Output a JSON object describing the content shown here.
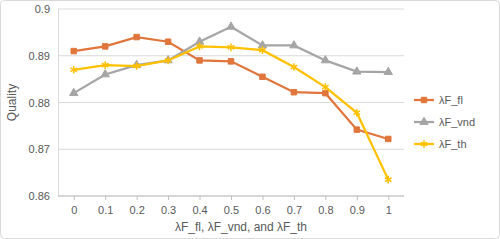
{
  "chart_data": {
    "type": "line",
    "x_label": "λF_fl, λF_vnd, and λF_th",
    "y_label": "Quality",
    "categories": [
      "0",
      "0.1",
      "0.2",
      "0.3",
      "0.4",
      "0.5",
      "0.6",
      "0.7",
      "0.8",
      "0.9",
      "1"
    ],
    "series": [
      {
        "name": "λF_fl",
        "color": "#e0763c",
        "marker": "square",
        "values": [
          0.891,
          0.892,
          0.894,
          0.893,
          0.889,
          0.8888,
          0.8855,
          0.8822,
          0.882,
          0.8742,
          0.8722
        ]
      },
      {
        "name": "λF_vnd",
        "color": "#a5a5a5",
        "marker": "triangle",
        "values": [
          0.882,
          0.886,
          0.888,
          0.889,
          0.893,
          0.8962,
          0.8922,
          0.8922,
          0.889,
          0.8866,
          0.8865
        ]
      },
      {
        "name": "λF_th",
        "color": "#ffc000",
        "marker": "asterisk",
        "values": [
          0.887,
          0.888,
          0.8878,
          0.889,
          0.892,
          0.8918,
          0.8912,
          0.8876,
          0.8833,
          0.8778,
          0.8635
        ]
      }
    ],
    "ylim": [
      0.86,
      0.9
    ],
    "yticks": [
      0.86,
      0.87,
      0.88,
      0.89,
      0.9
    ],
    "grid": true,
    "legend": "right"
  }
}
